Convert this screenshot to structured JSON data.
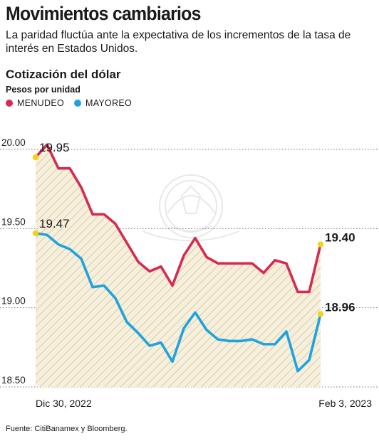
{
  "header": {
    "title": "Movimientos cambiarios",
    "subtitle": "La paridad fluctúa ante la expectativa de los incrementos de la tasa de interés en Estados Unidos."
  },
  "chart_data": {
    "type": "area",
    "title": "Cotización del dólar",
    "ylabel": "Pesos por unidad",
    "ylim": [
      18.5,
      20.0
    ],
    "yticks": [
      "20.00",
      "19.50",
      "19.00",
      "18.50"
    ],
    "ytick_values": [
      20.0,
      19.5,
      19.0,
      18.5
    ],
    "x_labels": {
      "start": "Dic 30, 2022",
      "end": "Feb 3, 2023"
    },
    "grid": "dotted-horizontal",
    "legend_position": "top-left",
    "series": [
      {
        "name": "MENUDEO",
        "color": "#d62b4f",
        "values": [
          19.95,
          20.03,
          19.88,
          19.88,
          19.76,
          19.59,
          19.59,
          19.53,
          19.41,
          19.29,
          19.23,
          19.26,
          19.14,
          19.33,
          19.44,
          19.32,
          19.28,
          19.28,
          19.28,
          19.28,
          19.22,
          19.3,
          19.28,
          19.1,
          19.1,
          19.4
        ],
        "start_label": "19.95",
        "end_label": "19.40"
      },
      {
        "name": "MAYOREO",
        "color": "#1fa3dc",
        "values": [
          19.47,
          19.46,
          19.4,
          19.37,
          19.31,
          19.13,
          19.14,
          19.06,
          18.91,
          18.84,
          18.76,
          18.78,
          18.66,
          18.87,
          18.97,
          18.86,
          18.8,
          18.79,
          18.79,
          18.8,
          18.77,
          18.77,
          18.85,
          18.6,
          18.67,
          18.96
        ],
        "start_label": "19.47",
        "end_label": "18.96"
      }
    ]
  },
  "footer": {
    "source": "Fuente: CitiBanamex y Bloomberg."
  }
}
